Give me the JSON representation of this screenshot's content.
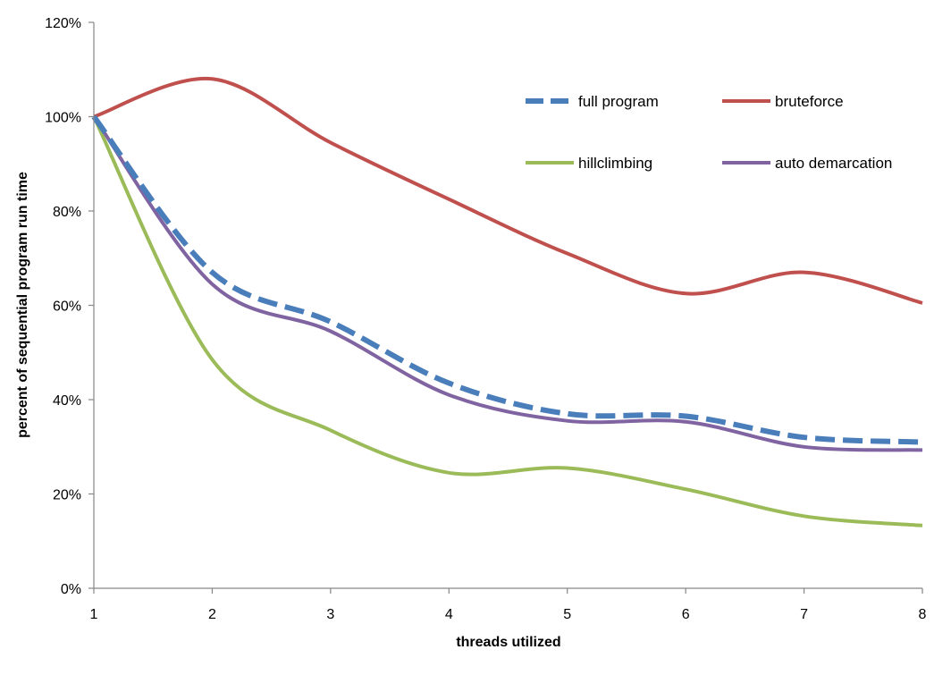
{
  "chart_data": {
    "type": "line",
    "title": "",
    "xlabel": "threads utilized",
    "ylabel": "percent of sequential program run time",
    "x": [
      1,
      2,
      3,
      4,
      5,
      6,
      7,
      8
    ],
    "x_ticks": [
      "1",
      "2",
      "3",
      "4",
      "5",
      "6",
      "7",
      "8"
    ],
    "xlim": [
      1,
      8
    ],
    "ylim": [
      0,
      120
    ],
    "y_ticks": [
      "0%",
      "20%",
      "40%",
      "60%",
      "80%",
      "100%",
      "120%"
    ],
    "grid": false,
    "legend_position": "top-right",
    "series": [
      {
        "name": "full program",
        "color": "#4a7ebb",
        "style": "dashed",
        "values": [
          100,
          67,
          56.5,
          43.5,
          37,
          36.5,
          32,
          31
        ]
      },
      {
        "name": "bruteforce",
        "color": "#c0504d",
        "style": "solid",
        "values": [
          100,
          108,
          94.5,
          82.5,
          71,
          62.5,
          67,
          60.5
        ]
      },
      {
        "name": "hillclimbing",
        "color": "#9bbb59",
        "style": "solid",
        "values": [
          100,
          48.5,
          33.5,
          24.5,
          25.5,
          21,
          15.3,
          13.3
        ]
      },
      {
        "name": "auto demarcation",
        "color": "#8064a2",
        "style": "solid",
        "values": [
          100,
          64.5,
          54.5,
          41,
          35.5,
          35.3,
          30,
          29.3
        ]
      }
    ]
  }
}
